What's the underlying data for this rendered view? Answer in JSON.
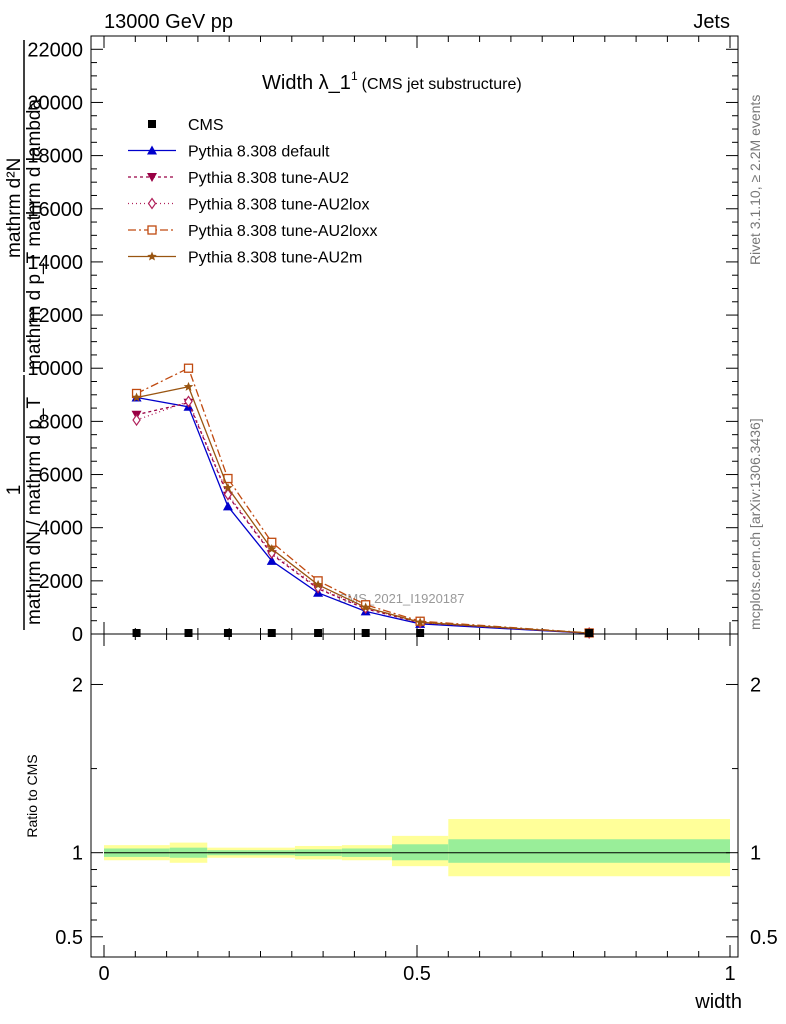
{
  "header": {
    "left": "13000 GeV pp",
    "right": "Jets"
  },
  "side": {
    "rivet": "Rivet 3.1.10, ≥ 2.2M events",
    "mcplots": "mcplots.cern.ch [arXiv:1306.3436]"
  },
  "watermark": "CMS_2021_I1920187",
  "chart_data": [
    {
      "type": "line",
      "title": "Width λ_1",
      "title_sup": "1",
      "subtitle": "(CMS jet substructure)",
      "ylabel_top": "mathrm d²N",
      "ylabel_bottom": "mathrm d p_T mathrm d lambda",
      "ylabel_prefix": "1",
      "ylabel_prefix_den": "mathrm dN / mathrm d p_T",
      "ylim": [
        0,
        22500
      ],
      "xlim": [
        0,
        1
      ],
      "yticks": [
        0,
        2000,
        4000,
        6000,
        8000,
        10000,
        12000,
        14000,
        16000,
        18000,
        20000,
        22000
      ],
      "ytick_labels": [
        "0",
        "2000",
        "4000",
        "6000",
        "8000",
        "10000",
        "12000",
        "14000",
        "16000",
        "18000",
        "20000",
        "22000"
      ],
      "x": [
        0.052,
        0.135,
        0.198,
        0.268,
        0.342,
        0.418,
        0.505,
        0.775
      ],
      "series": [
        {
          "name": "CMS",
          "color": "#000000",
          "marker": "square-filled",
          "dash": "none",
          "values": [
            0,
            0,
            0,
            0,
            0,
            0,
            0,
            0
          ]
        },
        {
          "name": "Pythia 8.308 default",
          "color": "#0000cc",
          "marker": "triangle-up-filled",
          "dash": "solid",
          "values": [
            8900,
            8550,
            4800,
            2750,
            1550,
            850,
            380,
            30
          ]
        },
        {
          "name": "Pythia 8.308 tune-AU2",
          "color": "#990044",
          "marker": "triangle-down-filled",
          "dash": "3,3",
          "values": [
            8250,
            8700,
            5200,
            3000,
            1700,
            950,
            420,
            35
          ]
        },
        {
          "name": "Pythia 8.308 tune-AU2lox",
          "color": "#b0205a",
          "marker": "diamond-open",
          "dash": "1,3",
          "values": [
            8050,
            8750,
            5250,
            3050,
            1750,
            980,
            430,
            35
          ]
        },
        {
          "name": "Pythia 8.308 tune-AU2loxx",
          "color": "#c04a10",
          "marker": "square-open",
          "dash": "8,3,2,3",
          "values": [
            9050,
            10000,
            5850,
            3450,
            2000,
            1100,
            480,
            40
          ]
        },
        {
          "name": "Pythia 8.308 tune-AU2m",
          "color": "#995511",
          "marker": "star-filled",
          "dash": "solid",
          "values": [
            8900,
            9300,
            5500,
            3200,
            1850,
            1000,
            440,
            38
          ]
        }
      ],
      "legend_position": "top-left"
    },
    {
      "type": "area",
      "ylabel": "Ratio to CMS",
      "xlabel": "width",
      "ylim": [
        0.38,
        2.3
      ],
      "yticks": [
        0.5,
        1,
        2
      ],
      "ytick_labels": [
        "0.5",
        "1",
        "2"
      ],
      "xticks": [
        0,
        0.5,
        1
      ],
      "xtick_labels": [
        "0",
        "0.5",
        "1"
      ],
      "reference_line": 1,
      "bands": [
        {
          "x0": 0.0,
          "x1": 0.105,
          "green": [
            0.975,
            1.025
          ],
          "yellow": [
            0.955,
            1.045
          ]
        },
        {
          "x0": 0.105,
          "x1": 0.165,
          "green": [
            0.97,
            1.03
          ],
          "yellow": [
            0.94,
            1.06
          ]
        },
        {
          "x0": 0.165,
          "x1": 0.23,
          "green": [
            0.985,
            1.015
          ],
          "yellow": [
            0.97,
            1.03
          ]
        },
        {
          "x0": 0.23,
          "x1": 0.305,
          "green": [
            0.985,
            1.015
          ],
          "yellow": [
            0.97,
            1.03
          ]
        },
        {
          "x0": 0.305,
          "x1": 0.38,
          "green": [
            0.98,
            1.02
          ],
          "yellow": [
            0.96,
            1.04
          ]
        },
        {
          "x0": 0.38,
          "x1": 0.46,
          "green": [
            0.975,
            1.025
          ],
          "yellow": [
            0.955,
            1.045
          ]
        },
        {
          "x0": 0.46,
          "x1": 0.55,
          "green": [
            0.955,
            1.05
          ],
          "yellow": [
            0.92,
            1.1
          ]
        },
        {
          "x0": 0.55,
          "x1": 1.0,
          "green": [
            0.94,
            1.08
          ],
          "yellow": [
            0.86,
            1.2
          ]
        }
      ]
    }
  ]
}
